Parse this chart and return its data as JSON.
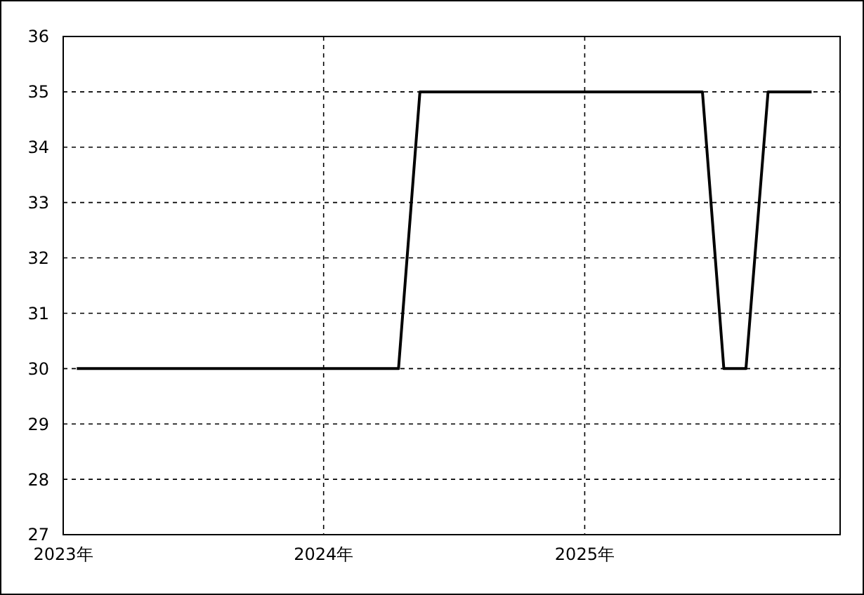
{
  "chart_data": {
    "type": "line",
    "x": [
      "2023-01-20",
      "2024-04-15",
      "2024-05-15",
      "2025-06-15",
      "2025-07-15",
      "2025-08-15",
      "2025-09-15",
      "2025-11-15"
    ],
    "series": [
      {
        "color": "#000000",
        "values": [
          30,
          30,
          35,
          35,
          30,
          30,
          35,
          35
        ]
      }
    ],
    "xlim": [
      "2023-01-01",
      "2025-12-25"
    ],
    "xticks": [
      {
        "value": "2023-01-01",
        "label": "2023年"
      },
      {
        "value": "2024-01-01",
        "label": "2024年"
      },
      {
        "value": "2025-01-01",
        "label": "2025年"
      }
    ],
    "ylim": [
      27,
      36
    ],
    "yticks": [
      27,
      28,
      29,
      30,
      31,
      32,
      33,
      34,
      35,
      36
    ],
    "grid": true,
    "marker": "none",
    "line_style": "solid"
  }
}
